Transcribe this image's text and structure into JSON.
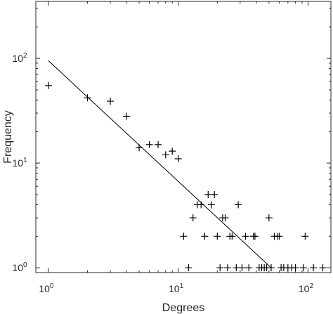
{
  "chart_data": {
    "type": "scatter",
    "title": "",
    "xlabel": "Degrees",
    "ylabel": "Frequency",
    "xscale": "log",
    "yscale": "log",
    "xlim": [
      0.8,
      150
    ],
    "ylim": [
      0.9,
      350
    ],
    "grid": false,
    "x_ticks": [
      {
        "value": 1,
        "base": "10",
        "exp": "0"
      },
      {
        "value": 10,
        "base": "10",
        "exp": "1"
      },
      {
        "value": 100,
        "base": "10",
        "exp": "2"
      }
    ],
    "y_ticks": [
      {
        "value": 1,
        "base": "10",
        "exp": "0"
      },
      {
        "value": 10,
        "base": "10",
        "exp": "1"
      },
      {
        "value": 100,
        "base": "10",
        "exp": "2"
      }
    ],
    "marker": "+",
    "points": [
      [
        1,
        55
      ],
      [
        2,
        42
      ],
      [
        3,
        39
      ],
      [
        4,
        28
      ],
      [
        5,
        14
      ],
      [
        6,
        15
      ],
      [
        7,
        15
      ],
      [
        8,
        12
      ],
      [
        9,
        13
      ],
      [
        10,
        11
      ],
      [
        11,
        2
      ],
      [
        12,
        1
      ],
      [
        13,
        3
      ],
      [
        14,
        4
      ],
      [
        15,
        4
      ],
      [
        16,
        2
      ],
      [
        17,
        5
      ],
      [
        18,
        4
      ],
      [
        19,
        5
      ],
      [
        20,
        2
      ],
      [
        21,
        1
      ],
      [
        22,
        3
      ],
      [
        23,
        3
      ],
      [
        24,
        1
      ],
      [
        25,
        2
      ],
      [
        26,
        2
      ],
      [
        28,
        1
      ],
      [
        29,
        4
      ],
      [
        31,
        1
      ],
      [
        33,
        2
      ],
      [
        35,
        1
      ],
      [
        38,
        2
      ],
      [
        39,
        2
      ],
      [
        42,
        1
      ],
      [
        44,
        1
      ],
      [
        46,
        1
      ],
      [
        48,
        1
      ],
      [
        50,
        3
      ],
      [
        52,
        1
      ],
      [
        55,
        2
      ],
      [
        58,
        2
      ],
      [
        60,
        2
      ],
      [
        62,
        1
      ],
      [
        65,
        1
      ],
      [
        70,
        1
      ],
      [
        75,
        1
      ],
      [
        80,
        1
      ],
      [
        92,
        1
      ],
      [
        95,
        2
      ],
      [
        110,
        1
      ],
      [
        130,
        1
      ]
    ],
    "fit_line": {
      "x": [
        1,
        52
      ],
      "y": [
        95,
        1
      ]
    }
  }
}
